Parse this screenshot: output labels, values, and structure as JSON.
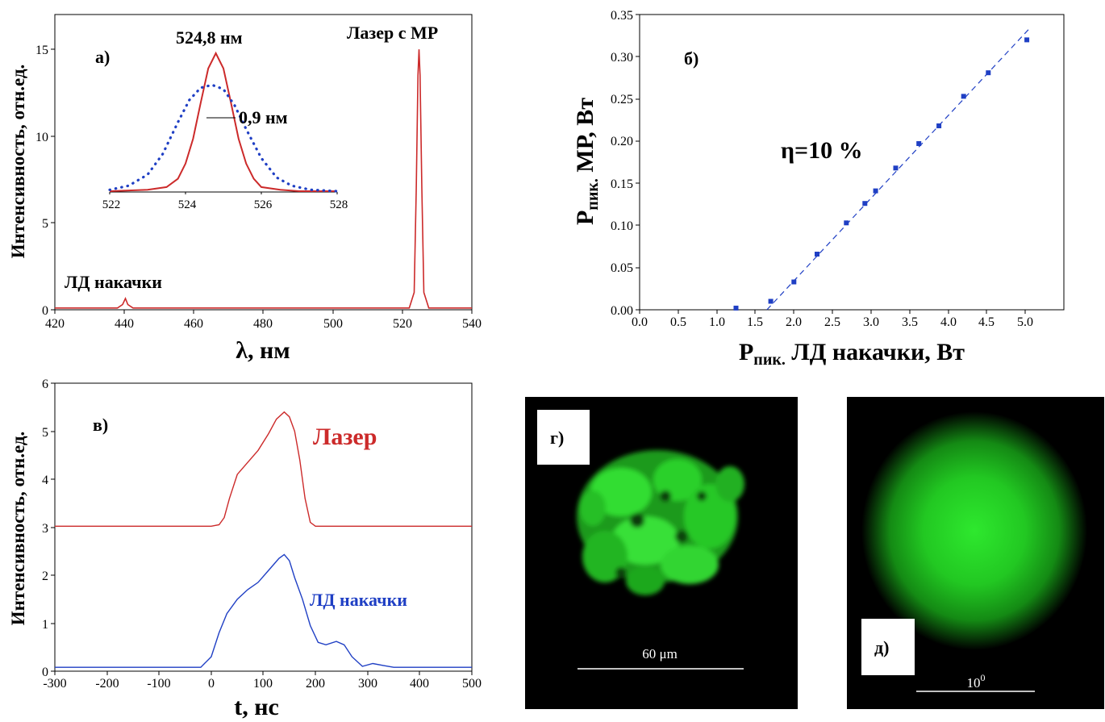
{
  "chart_data": [
    {
      "id": "a",
      "type": "line",
      "panel_label": "а)",
      "xlabel": "λ, нм",
      "ylabel": "Интенсивность, отн.ед.",
      "xlim": [
        420,
        540
      ],
      "ylim": [
        0,
        17
      ],
      "xticks": [
        420,
        440,
        460,
        480,
        500,
        520,
        540
      ],
      "yticks": [
        0,
        5,
        10,
        15
      ],
      "annotations": [
        "Лазер с МР",
        "ЛД накачки"
      ],
      "series": [
        {
          "color": "#cc2a2a",
          "x": [
            420,
            438,
            439.5,
            440.3,
            441,
            442.5,
            460,
            522,
            523.4,
            524,
            524.5,
            524.8,
            525.1,
            525.6,
            526.2,
            527.6,
            540
          ],
          "y": [
            0.1,
            0.1,
            0.3,
            0.65,
            0.3,
            0.1,
            0.1,
            0.1,
            1.0,
            7.0,
            13.5,
            15.0,
            13.5,
            7.0,
            1.0,
            0.1,
            0.1
          ]
        }
      ],
      "inset": {
        "type": "line",
        "xlim": [
          522,
          528
        ],
        "xticks": [
          522,
          524,
          526,
          528
        ],
        "peak_label": "524,8 нм",
        "width_label": "0,9 нм",
        "series": [
          {
            "color": "#cc2a2a",
            "style": "solid",
            "x": [
              522,
              523,
              523.5,
              523.8,
              524,
              524.2,
              524.4,
              524.6,
              524.8,
              525,
              525.2,
              525.4,
              525.6,
              525.8,
              526,
              526.5,
              527,
              528
            ],
            "y": [
              0.0,
              0.01,
              0.03,
              0.09,
              0.2,
              0.38,
              0.64,
              0.89,
              1.0,
              0.89,
              0.64,
              0.38,
              0.2,
              0.09,
              0.03,
              0.01,
              0.0,
              0.0
            ]
          },
          {
            "color": "#1f3fc4",
            "style": "dotted",
            "x": [
              522,
              522.5,
              523,
              523.4,
              523.8,
              524.1,
              524.4,
              524.7,
              525,
              525.3,
              525.6,
              526,
              526.4,
              526.8,
              527.3,
              528
            ],
            "y": [
              0.01,
              0.04,
              0.12,
              0.27,
              0.5,
              0.66,
              0.75,
              0.77,
              0.74,
              0.62,
              0.45,
              0.24,
              0.1,
              0.04,
              0.01,
              0.0
            ]
          }
        ]
      }
    },
    {
      "id": "b",
      "type": "scatter",
      "panel_label": "б)",
      "xlabel_main": "P",
      "xlabel_sub": "пик.",
      "xlabel_rest": " ЛД накачки, Вт",
      "ylabel_main": "P",
      "ylabel_sub": "пик.",
      "ylabel_rest": " МР, Вт",
      "xlim": [
        0,
        5.5
      ],
      "ylim": [
        0,
        0.35
      ],
      "xticks": [
        "0.0",
        "0.5",
        "1.0",
        "1.5",
        "2.0",
        "2.5",
        "3.0",
        "3.5",
        "4.0",
        "4.5",
        "5.0"
      ],
      "yticks": [
        "0.00",
        "0.05",
        "0.10",
        "0.15",
        "0.20",
        "0.25",
        "0.30",
        "0.35"
      ],
      "annotation": "η=10 %",
      "marker_color": "#1f3fc4",
      "x": [
        1.25,
        1.7,
        2.0,
        2.3,
        2.68,
        2.92,
        3.06,
        3.32,
        3.62,
        3.88,
        4.2,
        4.52,
        5.02
      ],
      "y": [
        0.002,
        0.01,
        0.033,
        0.066,
        0.103,
        0.126,
        0.141,
        0.168,
        0.197,
        0.218,
        0.253,
        0.281,
        0.32
      ],
      "fit": {
        "x": [
          1.65,
          5.05
        ],
        "y": [
          0.0,
          0.333
        ]
      }
    },
    {
      "id": "c",
      "type": "line",
      "panel_label": "в)",
      "xlabel": "t, нс",
      "ylabel": "Интенсивность, отн.ед.",
      "xlim": [
        -300,
        500
      ],
      "ylim": [
        0,
        6
      ],
      "xticks": [
        -300,
        -200,
        -100,
        0,
        100,
        200,
        300,
        400,
        500
      ],
      "yticks": [
        0,
        1,
        2,
        3,
        4,
        5,
        6
      ],
      "series": [
        {
          "name": "Лазер",
          "color": "#cc2a2a",
          "x": [
            -300,
            0,
            15,
            25,
            35,
            50,
            70,
            90,
            110,
            125,
            140,
            150,
            160,
            170,
            180,
            190,
            200,
            500
          ],
          "y": [
            3.02,
            3.02,
            3.05,
            3.2,
            3.6,
            4.1,
            4.35,
            4.6,
            4.95,
            5.25,
            5.4,
            5.3,
            5.0,
            4.4,
            3.6,
            3.1,
            3.02,
            3.02
          ]
        },
        {
          "name": "ЛД накачки",
          "color": "#1f3fc4",
          "x": [
            -300,
            -20,
            0,
            15,
            30,
            50,
            70,
            90,
            110,
            130,
            140,
            150,
            160,
            175,
            190,
            205,
            220,
            240,
            255,
            270,
            290,
            310,
            330,
            350,
            500
          ],
          "y": [
            0.08,
            0.08,
            0.3,
            0.8,
            1.2,
            1.5,
            1.7,
            1.85,
            2.1,
            2.35,
            2.43,
            2.3,
            1.95,
            1.5,
            0.95,
            0.6,
            0.55,
            0.62,
            0.55,
            0.3,
            0.1,
            0.16,
            0.12,
            0.08,
            0.08
          ]
        }
      ]
    }
  ],
  "photos": {
    "g": {
      "label": "г)",
      "scale_label": "60 μm"
    },
    "d": {
      "label": "д)",
      "scale_label": "10",
      "scale_sup": "0"
    }
  }
}
